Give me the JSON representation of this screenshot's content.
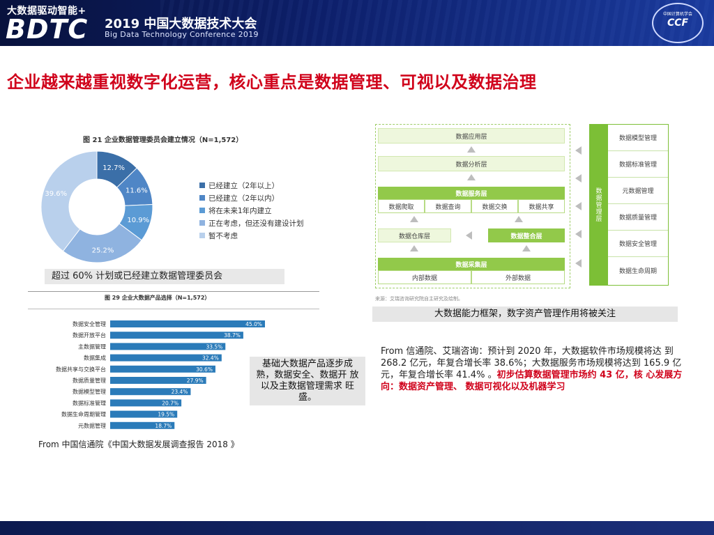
{
  "header": {
    "tagline": "大数据驱动智能+",
    "brand": "BDTC",
    "conference_cn": "2019 中国大数据技术大会",
    "conference_en": "Big Data Technology Conference 2019",
    "logo_top": "中国计算机学会",
    "logo_text": "CCF"
  },
  "title": "企业越来越重视数字化运营，核心重点是数据管理、可视以及数据治理",
  "chart_data": [
    {
      "type": "pie",
      "title": "图 21  企业数据管理委员会建立情况（N=1,572）",
      "categories": [
        "已经建立（2年以上）",
        "已经建立（2年以内）",
        "将在未来1年内建立",
        "正在考虑，但还没有建设计划",
        "暂不考虑"
      ],
      "values": [
        12.7,
        11.6,
        10.9,
        25.2,
        39.6
      ],
      "value_labels": [
        "12.7%",
        "11.6%",
        "10.9%",
        "25.2%",
        "39.6%"
      ],
      "colors": [
        "#3b6fa8",
        "#4f86c6",
        "#5b9bd5",
        "#8fb3e0",
        "#b9d0ec"
      ],
      "legend": "right"
    },
    {
      "type": "bar",
      "orientation": "horizontal",
      "title": "图 29  企业大数据产品选择（N=1,572）",
      "categories": [
        "数据安全管理",
        "数据开放平台",
        "主数据管理",
        "数据集成",
        "数据共享与交换平台",
        "数据质量管理",
        "数据模型管理",
        "数据标准管理",
        "数据生命周期管理",
        "元数据管理"
      ],
      "values": [
        45.0,
        38.7,
        33.5,
        32.4,
        30.6,
        27.9,
        23.4,
        20.7,
        19.5,
        18.7
      ],
      "value_labels": [
        "45.0%",
        "38.7%",
        "33.5%",
        "32.4%",
        "30.6%",
        "27.9%",
        "23.4%",
        "20.7%",
        "19.5%",
        "18.7%"
      ],
      "colors": [
        "#2b7bb9"
      ]
    }
  ],
  "donut_callout": "超过 60% 计划或已经建立数据管理委员会",
  "source_left": "From  中国信通院《中国大数据发展调查报告 2018 》",
  "mid_note": "基础大数据产品逐步成熟，数据安全、数据开  放以及主数据管理需求  旺盛。",
  "framework": {
    "layers": {
      "app": "数据应用层",
      "analysis": "数据分析层",
      "service": "数据服务层",
      "service_items": [
        "数据爬取",
        "数据查询",
        "数据交换",
        "数据共享"
      ],
      "warehouse": "数据仓库层",
      "integration": "数据整合层",
      "collection": "数据采集层",
      "collection_items": [
        "内部数据",
        "外部数据"
      ]
    },
    "side_title": "数据管理层",
    "side_items": [
      "数据模型管理",
      "数据标准管理",
      "元数据管理",
      "数据质量管理",
      "数据安全管理",
      "数据生命周期"
    ],
    "source": "来源：艾瑞咨询研究院自主研究及绘制。",
    "caption": "大数据能力框架，数字资产管理作用将被关注"
  },
  "source_right": {
    "text": "From  信通院、艾瑞咨询：预计到 2020 年，大数据软件市场规模将达 到 268.2 亿元，年复合增长率 38.6%；大数据服务市场规模将达到 165.9 亿元，年复合增长率 41.4% 。",
    "highlight": "初步估算数据管理市场约 43 亿，核  心发展方向：数据资产管理、 数据可视化以及机器学习"
  }
}
